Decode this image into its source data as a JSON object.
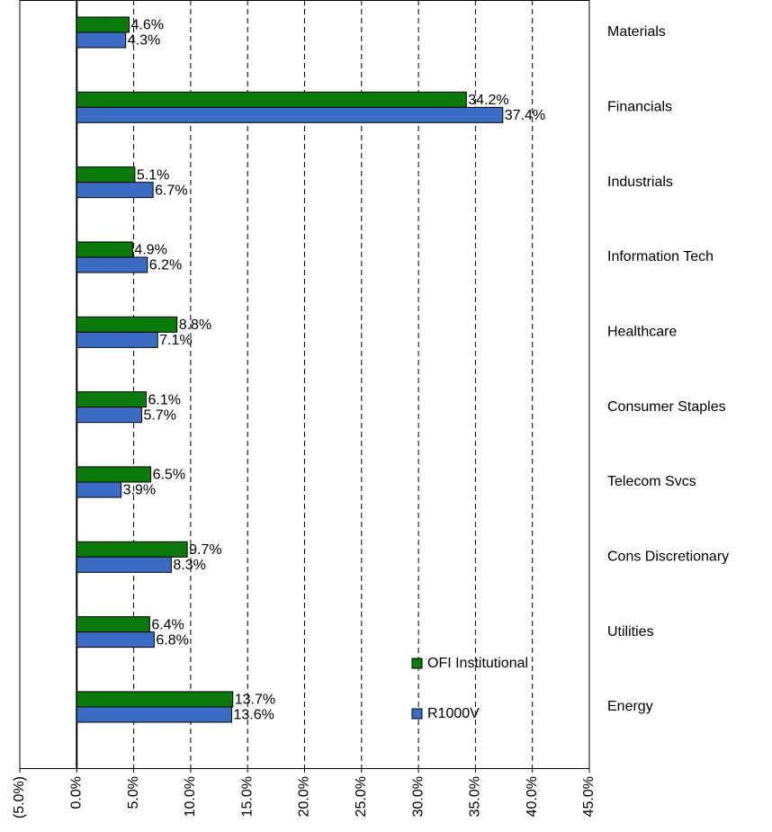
{
  "chart_data": {
    "type": "bar",
    "orientation": "horizontal",
    "categories": [
      "Materials",
      "Financials",
      "Industrials",
      "Information Tech",
      "Healthcare",
      "Consumer Staples",
      "Telecom Svcs",
      "Cons Discretionary",
      "Utilities",
      "Energy"
    ],
    "series": [
      {
        "name": "OFI Institutional",
        "color": "#0a7a0a",
        "values": [
          4.6,
          34.2,
          5.1,
          4.9,
          8.8,
          6.1,
          6.5,
          9.7,
          6.4,
          13.7
        ],
        "value_labels": [
          "4.6%",
          "34.2%",
          "5.1%",
          "4.9%",
          "8.8%",
          "6.1%",
          "6.5%",
          "9.7%",
          "6.4%",
          "13.7%"
        ]
      },
      {
        "name": "R1000V",
        "color": "#3a6cc4",
        "values": [
          4.3,
          37.4,
          6.7,
          6.2,
          7.1,
          5.7,
          3.9,
          8.3,
          6.8,
          13.6
        ],
        "value_labels": [
          "4.3%",
          "37.4%",
          "6.7%",
          "6.2%",
          "7.1%",
          "5.7%",
          "3.9%",
          "8.3%",
          "6.8%",
          "13.6%"
        ]
      }
    ],
    "xlim": [
      -5,
      45
    ],
    "xticks": [
      {
        "value": -5,
        "label": "(5.0%)"
      },
      {
        "value": 0,
        "label": "0.0%"
      },
      {
        "value": 5,
        "label": "5.0%"
      },
      {
        "value": 10,
        "label": "10.0%"
      },
      {
        "value": 15,
        "label": "15.0%"
      },
      {
        "value": 20,
        "label": "20.0%"
      },
      {
        "value": 25,
        "label": "25.0%"
      },
      {
        "value": 30,
        "label": "30.0%"
      },
      {
        "value": 35,
        "label": "35.0%"
      },
      {
        "value": 40,
        "label": "40.0%"
      },
      {
        "value": 45,
        "label": "45.0%"
      }
    ],
    "grid": true,
    "legend": "lower right"
  }
}
